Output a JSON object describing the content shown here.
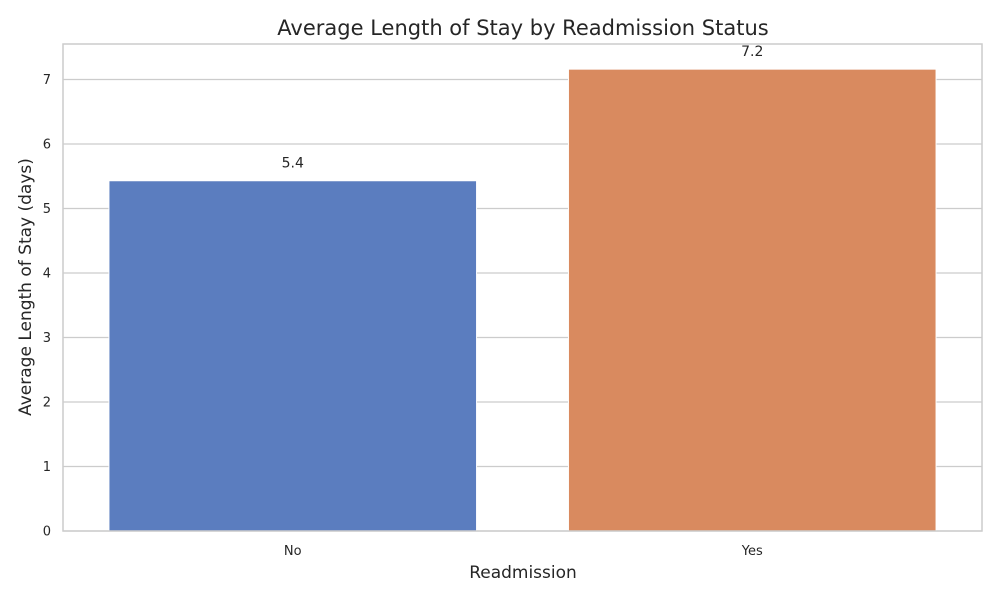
{
  "chart_data": {
    "type": "bar",
    "title": "Average Length of Stay by Readmission Status",
    "xlabel": "Readmission",
    "ylabel": "Average Length of Stay (days)",
    "categories": [
      "No",
      "Yes"
    ],
    "values": [
      5.43,
      7.16
    ],
    "data_labels": [
      "5.4",
      "7.2"
    ],
    "colors": [
      "#5b7dbf",
      "#d98a5f"
    ],
    "ylim": [
      0,
      7.55
    ],
    "yticks": [
      0,
      1,
      2,
      3,
      4,
      5,
      6,
      7
    ],
    "grid": true,
    "legend": "none"
  }
}
